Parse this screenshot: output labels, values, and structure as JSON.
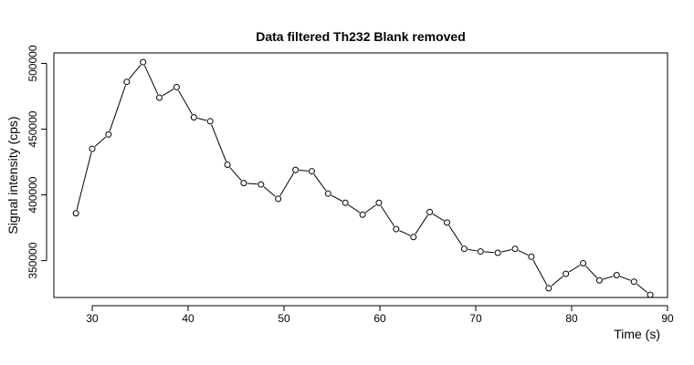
{
  "chart_data": {
    "type": "line",
    "title": "Data filtered Th232 Blank removed",
    "xlabel": "Time (s)",
    "ylabel": "Signal intensity (cps)",
    "xlim": [
      26,
      90
    ],
    "ylim": [
      322000,
      508000
    ],
    "x_ticks": [
      30,
      40,
      50,
      60,
      70,
      80,
      90
    ],
    "y_ticks": [
      350000,
      400000,
      450000,
      500000
    ],
    "grid": false,
    "marker": "open-circle",
    "series": [
      {
        "x": [
          28.3,
          30.0,
          31.7,
          33.6,
          35.3,
          37.0,
          38.8,
          40.6,
          42.3,
          44.1,
          45.8,
          47.6,
          49.4,
          51.2,
          52.9,
          54.6,
          56.4,
          58.2,
          59.9,
          61.7,
          63.5,
          65.2,
          67.0,
          68.8,
          70.5,
          72.3,
          74.1,
          75.8,
          77.6,
          79.4,
          81.2,
          82.9,
          84.7,
          86.5,
          88.2
        ],
        "y": [
          386000,
          435000,
          446000,
          486000,
          501000,
          474000,
          482000,
          459000,
          456000,
          423000,
          409000,
          408000,
          397000,
          419000,
          418000,
          401000,
          394000,
          385000,
          394000,
          374000,
          368000,
          387000,
          379000,
          359000,
          357000,
          356000,
          359000,
          353000,
          329000,
          340000,
          348000,
          335000,
          339000,
          334000,
          324000
        ]
      }
    ]
  }
}
